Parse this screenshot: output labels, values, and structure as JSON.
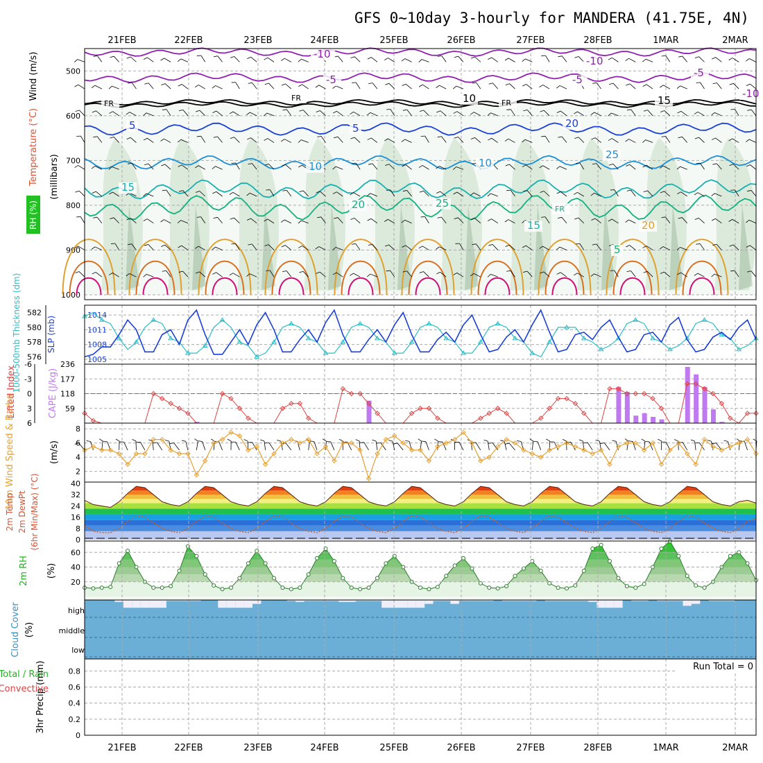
{
  "title": "GFS 0~10day 3-hourly for MANDERA (41.75E, 4N)",
  "dates": [
    "21FEB",
    "22FEB",
    "23FEB",
    "24FEB",
    "25FEB",
    "26FEB",
    "27FEB",
    "28FEB",
    "1MAR",
    "2MAR"
  ],
  "colors": {
    "grid": "#aaaaaa",
    "rh_fill": "#8fc08f",
    "cloud": "#6baed6",
    "clear": "#f0eef8",
    "slp": "#1a3fd6",
    "thickness": "#2bbdc6",
    "lifted": "#e04040",
    "cape": "#c07af0",
    "wind": "#e8a030",
    "rh2m": "#1bb81b",
    "dewpt": "#c06030"
  },
  "panels": {
    "upper": {
      "ylabel_units": "(millibars)",
      "label_wind": "Wind (m/s)",
      "label_temp": "Temperature (°C)",
      "label_rh": "RH (%)",
      "yticks": [
        "500",
        "600",
        "700",
        "800",
        "900",
        "1000"
      ],
      "contour_labels": [
        "-10",
        "-5",
        "FR",
        "5",
        "10",
        "15",
        "20",
        "25",
        "-10",
        "-5",
        "FR",
        "5",
        "10",
        "15",
        "20",
        "25",
        "FR",
        "5",
        "FR",
        "-5",
        "-10",
        "10",
        "15",
        "20"
      ]
    },
    "slp": {
      "label_thick": "1000-500mb Thickness (dm)",
      "label_slp": "SLP (mb)",
      "left_ticks": [
        "582",
        "580",
        "578",
        "576"
      ],
      "right_ticks": [
        "1014",
        "1011",
        "1008",
        "1005"
      ]
    },
    "cape": {
      "label_li": "Lifted Index",
      "label_cape": "CAPE (J/kg)",
      "left_ticks": [
        "-6",
        "-3",
        "0",
        "3",
        "6"
      ],
      "right_ticks": [
        "236",
        "177",
        "118",
        "59"
      ]
    },
    "wind": {
      "label": "10m Wind Speed & Barbs",
      "unit": "(m/s)",
      "ticks": [
        "8",
        "6",
        "4",
        "2"
      ]
    },
    "temp": {
      "label1": "2m Temp",
      "label2": "2m DewPt",
      "label3": "(6hr Min/Max) (°C)",
      "ticks": [
        "40",
        "32",
        "24",
        "16",
        "8",
        "0"
      ]
    },
    "rh": {
      "label": "2m RH",
      "unit": "(%)",
      "ticks": [
        "60",
        "40",
        "20"
      ]
    },
    "cloud": {
      "label": "Cloud Cover",
      "unit": "(%)",
      "levels": [
        "high",
        "middle",
        "low"
      ]
    },
    "precip": {
      "label1": "Total / Rain",
      "label2": "Convective",
      "label3": "3hr Precip (mm)",
      "ticks": [
        "0.8",
        "0.6",
        "0.4",
        "0.2",
        "0"
      ],
      "run_total": "Run Total = 0"
    }
  },
  "chart_data": [
    {
      "type": "line",
      "title": "Thickness / SLP",
      "x": [
        "20FEB12",
        "20FEB15",
        "20FEB18",
        "20FEB21",
        "21FEB00",
        "21FEB03",
        "21FEB06",
        "21FEB09",
        "21FEB12",
        "21FEB15",
        "21FEB18",
        "21FEB21",
        "22FEB00",
        "22FEB03",
        "22FEB06",
        "22FEB09",
        "22FEB12",
        "22FEB15",
        "22FEB18",
        "22FEB21",
        "23FEB00",
        "23FEB03",
        "23FEB06",
        "23FEB09",
        "23FEB12",
        "23FEB15",
        "23FEB18",
        "23FEB21",
        "24FEB00",
        "24FEB03",
        "24FEB06",
        "24FEB09",
        "24FEB12",
        "24FEB15",
        "24FEB18",
        "24FEB21",
        "25FEB00",
        "25FEB03",
        "25FEB06",
        "25FEB09",
        "25FEB12",
        "25FEB15",
        "25FEB18",
        "25FEB21",
        "26FEB00",
        "26FEB03",
        "26FEB06",
        "26FEB09",
        "26FEB12",
        "26FEB15",
        "26FEB18",
        "26FEB21",
        "27FEB00",
        "27FEB03",
        "27FEB06",
        "27FEB09",
        "27FEB12",
        "27FEB15",
        "27FEB18",
        "27FEB21",
        "28FEB00",
        "28FEB03",
        "28FEB06",
        "28FEB09",
        "28FEB12",
        "28FEB15",
        "28FEB18",
        "28FEB21",
        "1MAR00",
        "1MAR03",
        "1MAR06",
        "1MAR09",
        "1MAR12",
        "1MAR15",
        "1MAR18",
        "1MAR21",
        "2MAR00",
        "2MAR03",
        "2MAR06"
      ],
      "series": [
        {
          "name": "SLP (mb)",
          "values": [
            1005.5,
            1006,
            1007.5,
            1007.5,
            1010,
            1013,
            1011,
            1006.5,
            1006.5,
            1010,
            1011,
            1008,
            1013,
            1015,
            1010,
            1006,
            1006,
            1008.5,
            1011,
            1008,
            1012,
            1014.5,
            1011,
            1006.5,
            1006.5,
            1009,
            1011,
            1008.5,
            1012.5,
            1015,
            1010,
            1006.5,
            1006.5,
            1009,
            1011,
            1008.5,
            1012,
            1014.5,
            1010,
            1006.5,
            1006.5,
            1009,
            1010.5,
            1008.5,
            1012,
            1014,
            1010,
            1006.5,
            1007,
            1009.5,
            1011,
            1008.5,
            1012,
            1015,
            1010.5,
            1006.5,
            1007,
            1010,
            1010.5,
            1009,
            1011.5,
            1013,
            1009.5,
            1006.5,
            1007,
            1010,
            1010.5,
            1008.5,
            1012,
            1013.5,
            1009,
            1006.5,
            1007,
            1009.5,
            1010.5,
            1009,
            1011.5,
            1013,
            1009
          ]
        },
        {
          "name": "1000-500mb Thickness (dm)",
          "values": [
            581.5,
            582,
            581,
            580.5,
            578.5,
            577,
            578,
            580,
            581,
            580.5,
            578.5,
            578,
            576.5,
            576.5,
            577.5,
            580,
            581,
            580,
            578,
            577.5,
            576,
            576.5,
            578,
            580,
            580.5,
            580,
            578.5,
            578,
            576.5,
            576.5,
            578,
            580,
            580.5,
            580,
            578.5,
            578,
            576.5,
            576.5,
            578,
            580,
            580.5,
            580,
            578.5,
            578,
            576.5,
            576.5,
            578,
            580,
            580.5,
            580,
            578.5,
            578,
            576.5,
            576,
            578,
            580,
            580,
            580,
            578.5,
            578,
            577,
            577.5,
            578.5,
            580.5,
            581,
            580.5,
            578.5,
            578,
            577,
            577.5,
            578.5,
            580.5,
            581,
            580.5,
            579,
            578.5,
            577,
            577.5,
            578.5
          ]
        }
      ],
      "ylim_left": [
        575,
        583
      ],
      "ylim_right": [
        1004,
        1016
      ]
    },
    {
      "type": "bar",
      "title": "Lifted Index / CAPE",
      "series": [
        {
          "name": "Lifted Index",
          "x": [
            0,
            1,
            2,
            3,
            4,
            5,
            6,
            7,
            8,
            9,
            10,
            11,
            12,
            13,
            14,
            15,
            16,
            17,
            18,
            19,
            20,
            21,
            22,
            23,
            24,
            25,
            26,
            27,
            28,
            29,
            30,
            31,
            32,
            33,
            34,
            35,
            36,
            37,
            38,
            39,
            40,
            41,
            42,
            43,
            44,
            45,
            46,
            47,
            48,
            49,
            50,
            51,
            52,
            53,
            54,
            55,
            56,
            57,
            58,
            59,
            60,
            61,
            62,
            63,
            64,
            65,
            66,
            67,
            68,
            69,
            70,
            71,
            72,
            73,
            74,
            75,
            76,
            77,
            78
          ],
          "values": [
            4,
            5.5,
            6,
            6,
            6,
            6,
            6,
            6,
            0,
            1,
            2,
            3,
            4,
            6,
            6,
            6,
            0,
            1,
            3,
            5,
            6,
            6,
            6,
            3,
            2,
            2,
            5,
            6,
            6,
            6,
            -1,
            0,
            0,
            2,
            4,
            6,
            6,
            6,
            4,
            3,
            3,
            5,
            6,
            6,
            6,
            6,
            5,
            4,
            3,
            4,
            6,
            6,
            6,
            5,
            3,
            1,
            1,
            2,
            4,
            6,
            6,
            -1,
            -1,
            0,
            0,
            0,
            1,
            3,
            6,
            6,
            -2,
            -2,
            -1,
            0,
            2,
            5,
            6,
            4,
            4
          ]
        },
        {
          "name": "CAPE (J/kg)",
          "x": [
            13,
            33,
            62,
            63,
            64,
            65,
            66,
            67,
            70,
            71,
            72,
            73,
            74
          ],
          "values": [
            5,
            90,
            145,
            125,
            30,
            40,
            25,
            15,
            225,
            195,
            145,
            55,
            5
          ]
        }
      ]
    },
    {
      "type": "line",
      "title": "10m Wind Speed",
      "series": [
        {
          "name": "Wind Speed (m/s)",
          "values": [
            5,
            5.5,
            5,
            5,
            4.5,
            3,
            4.5,
            4.5,
            6.5,
            6.5,
            5,
            4.5,
            4.5,
            1.5,
            3.5,
            6,
            6.5,
            7.5,
            7,
            5,
            5.5,
            3,
            4.5,
            6,
            6.5,
            6,
            6.5,
            4.5,
            5.5,
            3.5,
            6,
            6,
            5,
            1,
            4.5,
            6.5,
            7,
            6,
            5,
            5,
            3.5,
            5.5,
            6,
            6.5,
            7.5,
            6,
            3.5,
            4,
            5.5,
            6.5,
            6,
            5,
            4.5,
            4,
            5,
            5.5,
            6,
            5.5,
            5,
            4.5,
            5,
            3,
            5.5,
            6,
            6,
            5,
            6,
            3,
            5,
            6,
            4.5,
            3,
            6.5,
            5.5,
            5,
            5.5,
            6,
            6.5,
            4.5
          ]
        }
      ]
    },
    {
      "type": "area",
      "title": "2m Temp / DewPt",
      "series": [
        {
          "name": "2m Temp",
          "values": [
            28,
            25,
            24,
            23,
            27,
            33,
            38,
            37,
            32,
            27,
            25,
            24,
            27,
            33,
            38,
            37,
            32,
            27,
            25,
            24,
            27,
            33,
            38,
            37,
            32,
            27,
            25,
            24,
            27,
            33,
            38,
            37,
            32,
            27,
            25,
            24,
            27,
            33,
            38,
            37,
            32,
            27,
            25,
            24,
            27,
            33,
            38,
            37,
            32,
            27,
            25,
            24,
            27,
            33,
            38,
            37,
            32,
            27,
            25,
            24,
            27,
            33,
            38,
            37,
            32,
            27,
            25,
            24,
            27,
            33,
            38,
            37,
            32,
            27,
            25,
            24,
            27,
            28,
            26
          ]
        },
        {
          "name": "2m DewPt",
          "values": [
            10,
            6,
            5,
            5,
            8,
            13,
            17,
            16,
            12,
            8,
            6,
            5,
            8,
            13,
            17,
            16,
            12,
            8,
            6,
            5,
            8,
            13,
            17,
            16,
            12,
            8,
            6,
            5,
            8,
            13,
            17,
            16,
            12,
            8,
            6,
            5,
            8,
            13,
            17,
            16,
            12,
            8,
            6,
            5,
            8,
            13,
            17,
            16,
            12,
            8,
            6,
            5,
            8,
            13,
            17,
            16,
            12,
            8,
            6,
            5,
            8,
            13,
            17,
            16,
            12,
            8,
            6,
            5,
            8,
            13,
            17,
            16,
            12,
            8,
            6,
            5,
            8,
            13,
            15
          ]
        }
      ],
      "ylim": [
        0,
        40
      ]
    },
    {
      "type": "area",
      "title": "2m RH",
      "series": [
        {
          "name": "2m RH (%)",
          "values": [
            12,
            11,
            12,
            13,
            45,
            62,
            40,
            20,
            12,
            12,
            14,
            35,
            68,
            55,
            30,
            15,
            10,
            12,
            25,
            45,
            62,
            45,
            25,
            12,
            10,
            12,
            30,
            52,
            65,
            48,
            25,
            12,
            10,
            12,
            25,
            45,
            55,
            40,
            20,
            12,
            10,
            13,
            28,
            42,
            52,
            38,
            18,
            12,
            11,
            14,
            28,
            38,
            48,
            35,
            18,
            12,
            11,
            15,
            35,
            65,
            70,
            48,
            25,
            14,
            12,
            17,
            40,
            65,
            75,
            55,
            28,
            15,
            12,
            20,
            40,
            55,
            60,
            45,
            22
          ]
        }
      ],
      "ylim": [
        0,
        80
      ]
    },
    {
      "type": "bar",
      "title": "Cloud Cover",
      "series": [
        {
          "name": "high",
          "values": [
            0,
            0,
            0,
            0,
            10,
            40,
            40,
            40,
            40,
            40,
            5,
            5,
            5,
            5,
            0,
            0,
            40,
            40,
            40,
            40,
            20,
            0,
            0,
            0,
            5,
            10,
            5,
            5,
            5,
            5,
            10,
            10,
            5,
            5,
            5,
            40,
            40,
            40,
            40,
            40,
            20,
            5,
            5,
            20,
            5,
            5,
            5,
            5,
            0,
            5,
            5,
            5,
            5,
            0,
            5,
            5,
            5,
            5,
            5,
            10,
            40,
            40,
            40,
            0,
            5,
            5,
            0,
            5,
            5,
            5,
            30,
            20,
            0,
            5,
            5,
            5,
            0,
            0,
            0
          ]
        }
      ],
      "ylim": [
        0,
        100
      ]
    },
    {
      "type": "bar",
      "title": "3hr Precip (mm)",
      "series": [
        {
          "name": "Total / Rain",
          "values": []
        },
        {
          "name": "Convective",
          "values": []
        }
      ],
      "ylim": [
        0,
        1
      ]
    }
  ]
}
